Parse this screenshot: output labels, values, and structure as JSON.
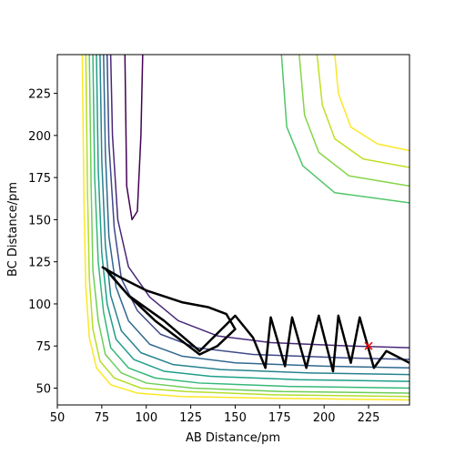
{
  "chart_data": {
    "type": "contour",
    "x_label": "AB Distance/pm",
    "y_label": "BC Distance/pm",
    "xlim": [
      50,
      248
    ],
    "ylim": [
      40,
      248
    ],
    "xticks": [
      50,
      75,
      100,
      125,
      150,
      175,
      200,
      225
    ],
    "yticks": [
      50,
      75,
      100,
      125,
      150,
      175,
      200,
      225
    ],
    "contours": [
      {
        "color": "#fde725",
        "x": [
          64,
          65,
          66,
          68,
          72,
          80,
          95,
          120,
          170,
          248
        ],
        "y": [
          248,
          160,
          110,
          80,
          62,
          52,
          47,
          45,
          44,
          43
        ]
      },
      {
        "color": "#b5de2b",
        "x": [
          66,
          67,
          68,
          70,
          74,
          82,
          97,
          122,
          172,
          248
        ],
        "y": [
          248,
          165,
          115,
          85,
          66,
          56,
          50,
          48,
          46,
          45
        ]
      },
      {
        "color": "#6ece58",
        "x": [
          68,
          69,
          70,
          73,
          77,
          86,
          100,
          126,
          176,
          248
        ],
        "y": [
          248,
          170,
          120,
          90,
          70,
          59,
          53,
          50,
          48,
          47
        ]
      },
      {
        "color": "#35b779",
        "x": [
          70,
          71,
          73,
          76,
          80,
          90,
          105,
          130,
          180,
          248
        ],
        "y": [
          248,
          175,
          125,
          95,
          74,
          62,
          56,
          53,
          51,
          50
        ]
      },
      {
        "color": "#1f9e89",
        "x": [
          72,
          73,
          75,
          78,
          83,
          93,
          110,
          136,
          186,
          248
        ],
        "y": [
          248,
          180,
          130,
          100,
          79,
          67,
          60,
          57,
          55,
          54
        ]
      },
      {
        "color": "#26828e",
        "x": [
          74,
          75,
          77,
          80,
          86,
          97,
          115,
          142,
          192,
          248
        ],
        "y": [
          248,
          185,
          135,
          105,
          84,
          71,
          64,
          61,
          59,
          58
        ]
      },
      {
        "color": "#31688e",
        "x": [
          76,
          77,
          79,
          83,
          90,
          102,
          120,
          150,
          200,
          248
        ],
        "y": [
          248,
          190,
          140,
          110,
          90,
          76,
          69,
          65,
          63,
          62
        ]
      },
      {
        "color": "#3e4989",
        "x": [
          78,
          79,
          82,
          86,
          95,
          108,
          128,
          160,
          210,
          248
        ],
        "y": [
          248,
          195,
          145,
          115,
          96,
          82,
          74,
          70,
          68,
          67
        ]
      },
      {
        "color": "#482878",
        "x": [
          80,
          81,
          84,
          90,
          102,
          118,
          140,
          170,
          215,
          248
        ],
        "y": [
          248,
          200,
          150,
          122,
          104,
          90,
          81,
          77,
          75,
          74
        ]
      },
      {
        "color": "#440154",
        "x": [
          88,
          89,
          92,
          95,
          97,
          98
        ],
        "y": [
          248,
          170,
          150,
          155,
          200,
          248
        ]
      },
      {
        "color": "#fde725",
        "x": [
          206,
          208,
          215,
          230,
          248
        ],
        "y": [
          248,
          225,
          205,
          195,
          191
        ]
      },
      {
        "color": "#c2df23",
        "x": [
          196,
          199,
          206,
          222,
          248
        ],
        "y": [
          248,
          218,
          198,
          186,
          181
        ]
      },
      {
        "color": "#86d549",
        "x": [
          186,
          189,
          197,
          214,
          248
        ],
        "y": [
          248,
          212,
          190,
          176,
          170
        ]
      },
      {
        "color": "#52c569",
        "x": [
          176,
          179,
          188,
          206,
          248
        ],
        "y": [
          248,
          205,
          182,
          166,
          160
        ]
      }
    ],
    "trajectory": {
      "color": "#000000",
      "x": [
        75,
        85,
        100,
        120,
        135,
        145,
        150,
        140,
        130,
        120,
        105,
        90,
        80,
        77,
        90,
        110,
        130,
        150,
        160,
        167,
        170,
        178,
        182,
        190,
        197,
        205,
        208,
        215,
        220,
        228,
        235,
        248
      ],
      "y": [
        122,
        116,
        108,
        101,
        98,
        94,
        85,
        75,
        70,
        78,
        90,
        105,
        117,
        121,
        105,
        90,
        72,
        93,
        80,
        62,
        92,
        63,
        92,
        62,
        93,
        60,
        93,
        65,
        92,
        62,
        72,
        65
      ]
    },
    "marker": {
      "color": "#ff0000",
      "x": 225,
      "y": 75
    }
  }
}
